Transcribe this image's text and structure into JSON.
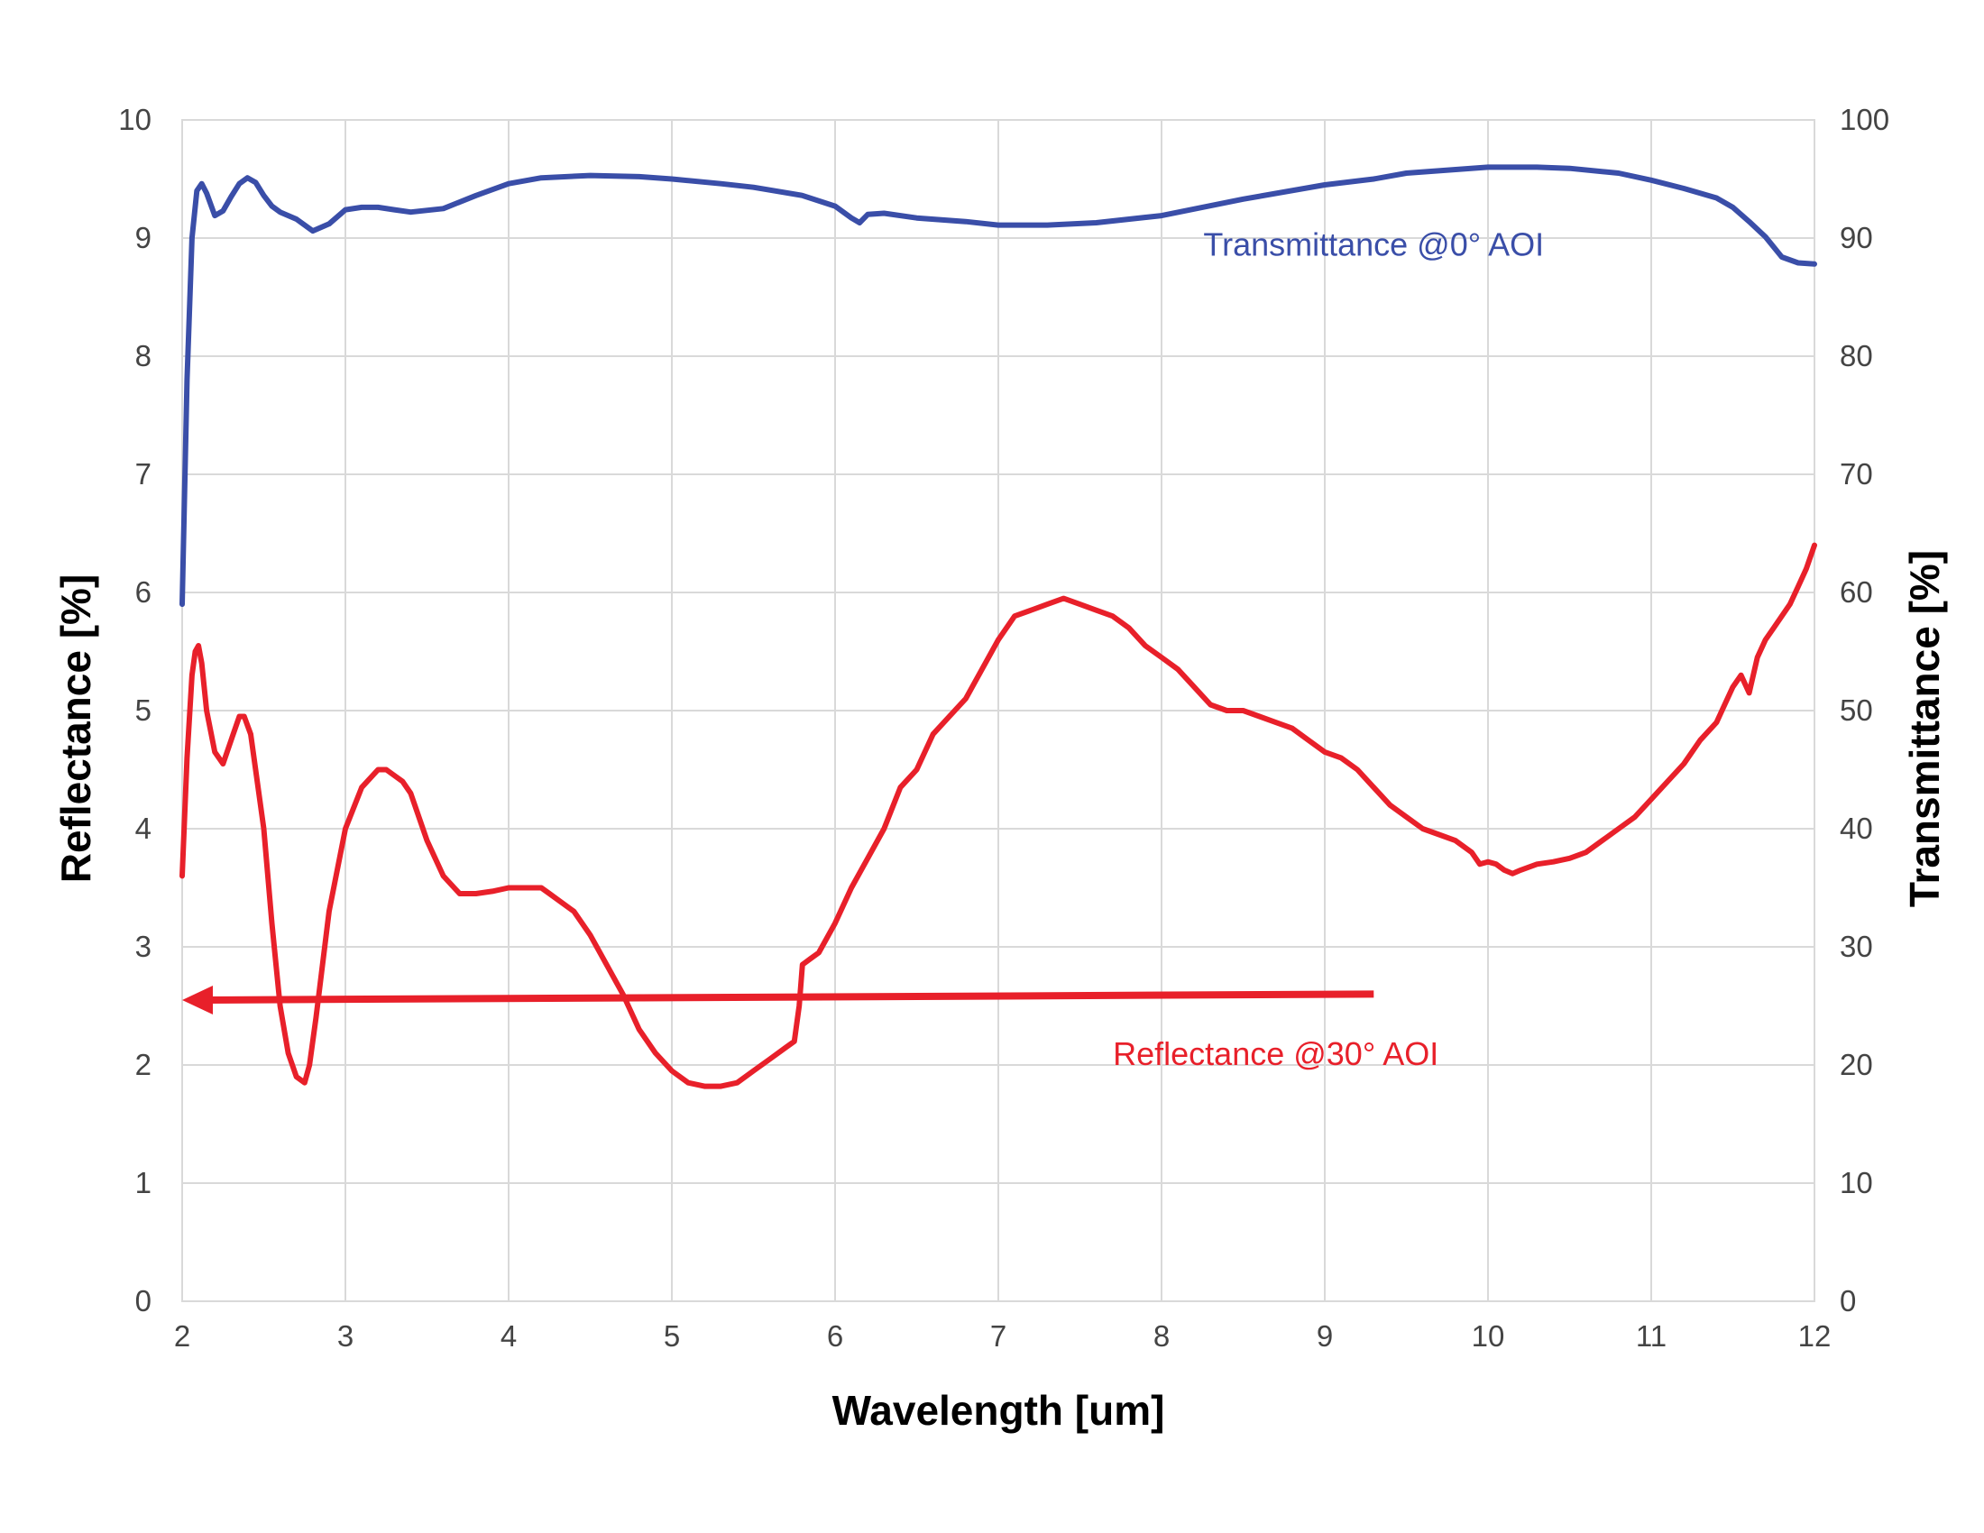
{
  "chart_data": {
    "type": "line",
    "xlabel": "Wavelength [um]",
    "ylabel_left": "Reflectance [%]",
    "ylabel_right": "Transmittance [%]",
    "xlim": [
      2,
      12
    ],
    "ylim_left": [
      0,
      10
    ],
    "ylim_right": [
      0,
      100
    ],
    "x_ticks": [
      "2",
      "3",
      "4",
      "5",
      "6",
      "7",
      "8",
      "9",
      "10",
      "11",
      "12"
    ],
    "y_left_ticks": [
      "0",
      "1",
      "2",
      "3",
      "4",
      "5",
      "6",
      "7",
      "8",
      "9",
      "10"
    ],
    "y_right_ticks": [
      "0",
      "10",
      "20",
      "30",
      "40",
      "50",
      "60",
      "70",
      "80",
      "90",
      "100"
    ],
    "grid": true,
    "colors": {
      "transmittance": "#3a4ea8",
      "reflectance": "#e8202a",
      "grid": "#d9d9d9"
    },
    "series": [
      {
        "name": "Transmittance @0° AOI",
        "axis": "right",
        "x": [
          2.0,
          2.03,
          2.06,
          2.09,
          2.12,
          2.15,
          2.2,
          2.25,
          2.3,
          2.35,
          2.4,
          2.45,
          2.5,
          2.55,
          2.6,
          2.7,
          2.8,
          2.9,
          3.0,
          3.1,
          3.2,
          3.3,
          3.4,
          3.6,
          3.8,
          4.0,
          4.2,
          4.5,
          4.8,
          5.0,
          5.3,
          5.5,
          5.8,
          6.0,
          6.1,
          6.15,
          6.2,
          6.3,
          6.5,
          6.8,
          7.0,
          7.3,
          7.6,
          8.0,
          8.5,
          9.0,
          9.3,
          9.5,
          10.0,
          10.3,
          10.5,
          10.8,
          11.0,
          11.2,
          11.4,
          11.5,
          11.6,
          11.7,
          11.8,
          11.9,
          12.0
        ],
        "values": [
          59,
          78,
          90,
          94,
          94.6,
          93.8,
          91.9,
          92.3,
          93.5,
          94.6,
          95.1,
          94.7,
          93.6,
          92.7,
          92.2,
          91.6,
          90.6,
          91.2,
          92.4,
          92.6,
          92.6,
          92.4,
          92.2,
          92.5,
          93.6,
          94.6,
          95.1,
          95.3,
          95.2,
          95.0,
          94.6,
          94.3,
          93.6,
          92.7,
          91.7,
          91.3,
          92.0,
          92.1,
          91.7,
          91.4,
          91.1,
          91.1,
          91.3,
          91.9,
          93.3,
          94.5,
          95.0,
          95.5,
          96.0,
          96.0,
          95.9,
          95.5,
          94.9,
          94.2,
          93.4,
          92.6,
          91.4,
          90.1,
          88.4,
          87.9,
          87.8
        ]
      },
      {
        "name": "Reflectance @30° AOI",
        "axis": "left",
        "x": [
          2.0,
          2.03,
          2.06,
          2.08,
          2.1,
          2.12,
          2.15,
          2.2,
          2.25,
          2.3,
          2.35,
          2.38,
          2.42,
          2.5,
          2.55,
          2.6,
          2.65,
          2.7,
          2.75,
          2.78,
          2.82,
          2.9,
          3.0,
          3.1,
          3.2,
          3.25,
          3.3,
          3.35,
          3.4,
          3.5,
          3.6,
          3.7,
          3.8,
          3.9,
          4.0,
          4.1,
          4.2,
          4.25,
          4.3,
          4.4,
          4.5,
          4.6,
          4.7,
          4.8,
          4.9,
          5.0,
          5.1,
          5.2,
          5.3,
          5.4,
          5.5,
          5.6,
          5.7,
          5.75,
          5.78,
          5.8,
          5.85,
          5.9,
          6.0,
          6.1,
          6.2,
          6.3,
          6.4,
          6.5,
          6.6,
          6.7,
          6.8,
          6.9,
          7.0,
          7.1,
          7.2,
          7.3,
          7.4,
          7.5,
          7.6,
          7.7,
          7.8,
          7.9,
          8.0,
          8.1,
          8.2,
          8.3,
          8.4,
          8.5,
          8.6,
          8.7,
          8.8,
          8.9,
          9.0,
          9.1,
          9.2,
          9.3,
          9.4,
          9.5,
          9.6,
          9.7,
          9.8,
          9.9,
          9.95,
          10.0,
          10.05,
          10.1,
          10.15,
          10.2,
          10.3,
          10.4,
          10.5,
          10.6,
          10.7,
          10.8,
          10.9,
          11.0,
          11.1,
          11.2,
          11.3,
          11.4,
          11.45,
          11.5,
          11.55,
          11.6,
          11.65,
          11.7,
          11.75,
          11.8,
          11.85,
          11.9,
          11.95,
          12.0
        ],
        "values": [
          3.6,
          4.6,
          5.3,
          5.5,
          5.55,
          5.4,
          5.0,
          4.65,
          4.55,
          4.75,
          4.95,
          4.95,
          4.8,
          4.0,
          3.2,
          2.5,
          2.1,
          1.9,
          1.85,
          2.0,
          2.4,
          3.3,
          4.0,
          4.35,
          4.5,
          4.5,
          4.45,
          4.4,
          4.3,
          3.9,
          3.6,
          3.45,
          3.45,
          3.47,
          3.5,
          3.5,
          3.5,
          3.45,
          3.4,
          3.3,
          3.1,
          2.85,
          2.6,
          2.3,
          2.1,
          1.95,
          1.85,
          1.82,
          1.82,
          1.85,
          1.95,
          2.05,
          2.15,
          2.2,
          2.5,
          2.85,
          2.9,
          2.95,
          3.2,
          3.5,
          3.75,
          4.0,
          4.35,
          4.5,
          4.8,
          4.95,
          5.1,
          5.35,
          5.6,
          5.8,
          5.85,
          5.9,
          5.95,
          5.9,
          5.85,
          5.8,
          5.7,
          5.55,
          5.45,
          5.35,
          5.2,
          5.05,
          5.0,
          5.0,
          4.95,
          4.9,
          4.85,
          4.75,
          4.65,
          4.6,
          4.5,
          4.35,
          4.2,
          4.1,
          4.0,
          3.95,
          3.9,
          3.8,
          3.7,
          3.72,
          3.7,
          3.65,
          3.62,
          3.65,
          3.7,
          3.72,
          3.75,
          3.8,
          3.9,
          4.0,
          4.1,
          4.25,
          4.4,
          4.55,
          4.75,
          4.9,
          5.05,
          5.2,
          5.3,
          5.15,
          5.45,
          5.6,
          5.7,
          5.8,
          5.9,
          6.05,
          6.2,
          6.4
        ]
      }
    ],
    "annotations": [
      {
        "text": "Transmittance @0° AOI",
        "series": "Transmittance @0° AOI",
        "x": 9.3,
        "y": 88.5,
        "axis": "right"
      },
      {
        "text": "Reflectance @30° AOI",
        "series": "Reflectance @30° AOI",
        "x": 8.7,
        "y": 2.0,
        "axis": "left"
      }
    ],
    "arrow": {
      "from": {
        "x": 9.3,
        "y": 2.6
      },
      "to": {
        "x": 2.0,
        "y": 2.55
      },
      "axis": "left",
      "color": "#e8202a"
    }
  }
}
